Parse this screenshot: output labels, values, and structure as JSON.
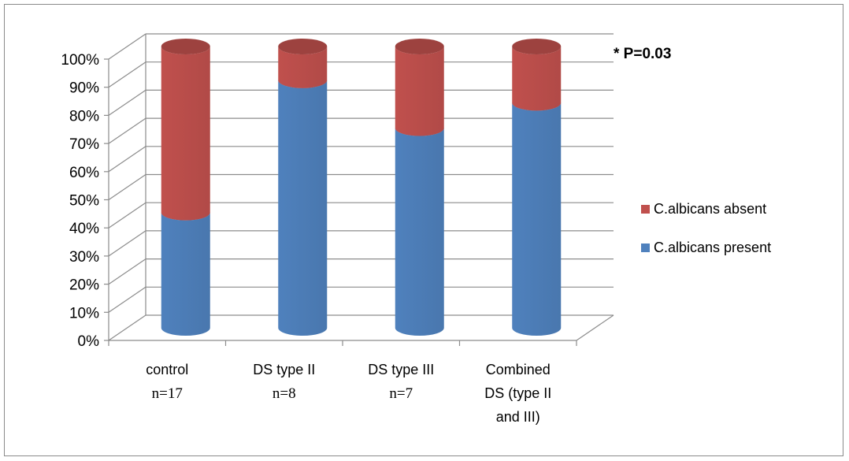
{
  "chart_data": {
    "type": "bar",
    "stacked": true,
    "three_d": true,
    "bar_shape": "cylinder",
    "categories": [
      "control",
      "DS type II",
      "DS type III",
      "Combined DS (type II and III)"
    ],
    "category_lines": [
      [
        "control",
        "n=17"
      ],
      [
        "DS type II",
        "n=8"
      ],
      [
        "DS type III",
        "n=7"
      ],
      [
        "Combined",
        "DS (type II",
        "and III)"
      ]
    ],
    "series": [
      {
        "name": "C.albicans present",
        "values": [
          41,
          88,
          71,
          80
        ],
        "color": "#4f81bd"
      },
      {
        "name": "C.albicans absent",
        "values": [
          59,
          12,
          29,
          20
        ],
        "color": "#c0504d"
      }
    ],
    "ylim": [
      0,
      100
    ],
    "yticks": [
      "0%",
      "10%",
      "20%",
      "30%",
      "40%",
      "50%",
      "60%",
      "70%",
      "80%",
      "90%",
      "100%"
    ],
    "grid": true,
    "legend_position": "right",
    "legend_order": [
      "C.albicans absent",
      "C.albicans present"
    ],
    "annotation": "* P=0.03",
    "title": "",
    "xlabel": "",
    "ylabel": ""
  }
}
